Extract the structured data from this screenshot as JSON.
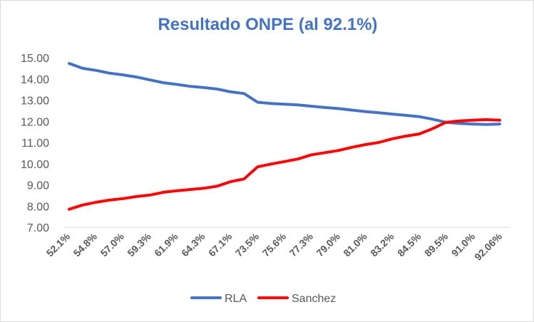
{
  "chart_data": {
    "type": "line",
    "title": "Resultado ONPE (al 92.1%)",
    "xlabel": "",
    "ylabel": "",
    "ylim": [
      7.0,
      15.0
    ],
    "yticks": [
      "7.00",
      "8.00",
      "9.00",
      "10.00",
      "11.00",
      "12.00",
      "13.00",
      "14.00",
      "15.00"
    ],
    "gridlines": false,
    "legend_position": "bottom",
    "x_tick_labels": [
      "52.1%",
      "54.8%",
      "57.0%",
      "59.3%",
      "61.9%",
      "64.3%",
      "67.1%",
      "73.5%",
      "75.6%",
      "77.3%",
      "79.0%",
      "81.0%",
      "83.2%",
      "84.5%",
      "89.5%",
      "91.0%",
      "92.06%"
    ],
    "series": [
      {
        "name": "RLA",
        "color": "#4472c4",
        "values": [
          14.73,
          14.5,
          14.4,
          14.27,
          14.19,
          14.09,
          13.95,
          13.82,
          13.74,
          13.65,
          13.59,
          13.52,
          13.39,
          13.31,
          12.9,
          12.84,
          12.81,
          12.77,
          12.71,
          12.65,
          12.6,
          12.53,
          12.46,
          12.4,
          12.34,
          12.28,
          12.22,
          12.1,
          11.95,
          11.9,
          11.87,
          11.85,
          11.87
        ]
      },
      {
        "name": "Sanchez",
        "color": "#ff0000",
        "values": [
          7.85,
          8.05,
          8.18,
          8.28,
          8.35,
          8.45,
          8.52,
          8.65,
          8.72,
          8.78,
          8.84,
          8.94,
          9.15,
          9.28,
          9.85,
          9.98,
          10.1,
          10.22,
          10.42,
          10.52,
          10.62,
          10.77,
          10.9,
          11.0,
          11.17,
          11.3,
          11.4,
          11.65,
          11.95,
          12.02,
          12.05,
          12.08,
          12.05
        ]
      }
    ]
  }
}
